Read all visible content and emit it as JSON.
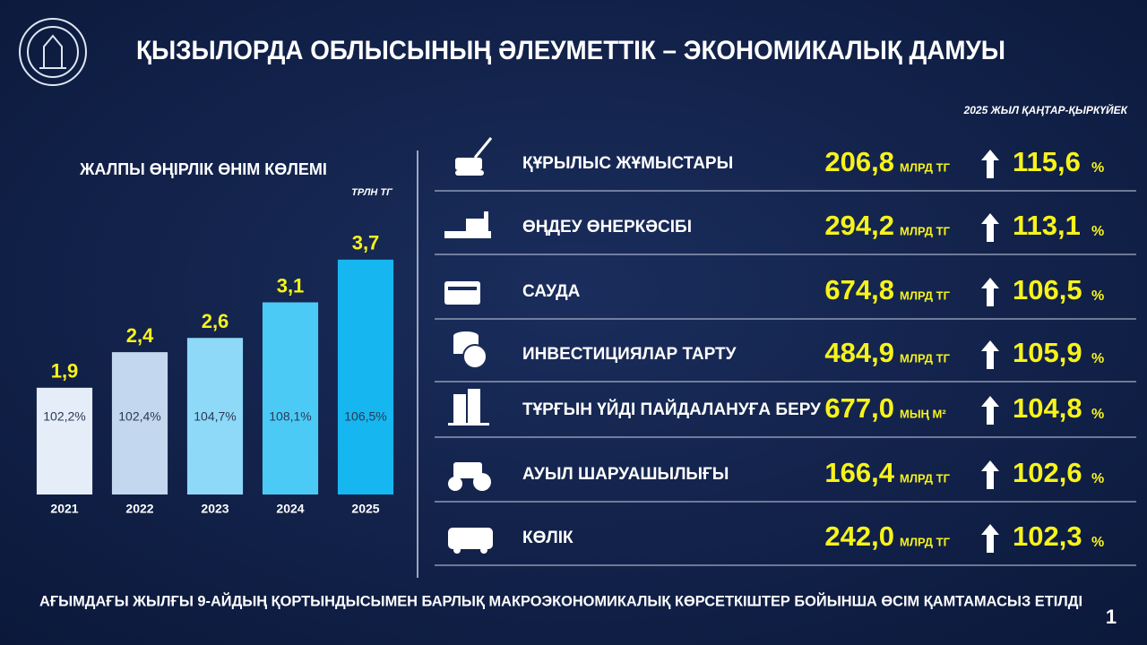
{
  "header": {
    "title": "ҚЫЗЫЛОРДА ОБЛЫСЫНЫҢ ӘЛЕУМЕТТІК – ЭКОНОМИКАЛЫҚ ДАМУЫ",
    "period": "2025 ЖЫЛ ҚАҢТАР-ҚЫРКҮЙЕК"
  },
  "chart_data": {
    "type": "bar",
    "title": "ЖАЛПЫ ӨҢІРЛІК ӨНІМ КӨЛЕМІ",
    "ylabel": "ТРЛН ТГ",
    "categories": [
      "2021",
      "2022",
      "2023",
      "2024",
      "2025"
    ],
    "values": [
      1.9,
      2.4,
      2.6,
      3.1,
      3.7
    ],
    "value_labels": [
      "1,9",
      "2,4",
      "2,6",
      "3,1",
      "3,7"
    ],
    "bar_labels": [
      "102,2%",
      "102,4%",
      "104,7%",
      "108,1%",
      "106,5%"
    ],
    "colors": [
      "#e4edf8",
      "#c3d7ee",
      "#8ed8f8",
      "#4ccaf6",
      "#16b6f0"
    ],
    "ylim": [
      0.4,
      4
    ],
    "grid": false
  },
  "indicators": [
    {
      "label": "ҚҰРЫЛЫС ЖҰМЫСТАРЫ",
      "value": "206,8",
      "unit": "МЛРД ТГ",
      "growth": "115,6",
      "growth_unit": "%"
    },
    {
      "label": "ӨҢДЕУ  ӨНЕРКӘСІБІ",
      "value": "294,2",
      "unit": "МЛРД ТГ",
      "growth": "113,1",
      "growth_unit": "%"
    },
    {
      "label": "САУДА",
      "value": "674,8",
      "unit": "МЛРД ТГ",
      "growth": "106,5",
      "growth_unit": "%"
    },
    {
      "label": "ИНВЕСТИЦИЯЛАР ТАРТУ",
      "value": "484,9",
      "unit": "МЛРД ТГ",
      "growth": "105,9",
      "growth_unit": "%"
    },
    {
      "label": "ТҰРҒЫН ҮЙДІ ПАЙДАЛАНУҒА БЕРУ",
      "value": "677,0",
      "unit": "МЫҢ М²",
      "growth": "104,8",
      "growth_unit": "%"
    },
    {
      "label": "АУЫЛ ШАРУАШЫЛЫҒЫ",
      "value": "166,4",
      "unit": "МЛРД ТГ",
      "growth": "102,6",
      "growth_unit": "%"
    },
    {
      "label": "КӨЛІК",
      "value": "242,0",
      "unit": "МЛРД ТГ",
      "growth": "102,3",
      "growth_unit": "%"
    }
  ],
  "footer": {
    "text": "АҒЫМДАҒЫ ЖЫЛҒЫ 9-АЙДЫҢ ҚОРТЫНДЫСЫМЕН БАРЛЫҚ МАКРОЭКОНОМИКАЛЫҚ КӨРСЕТКІШТЕР БОЙЫНША ӨСІМ ҚАМТАМАСЫЗ ЕТІЛДІ",
    "page": "1"
  }
}
